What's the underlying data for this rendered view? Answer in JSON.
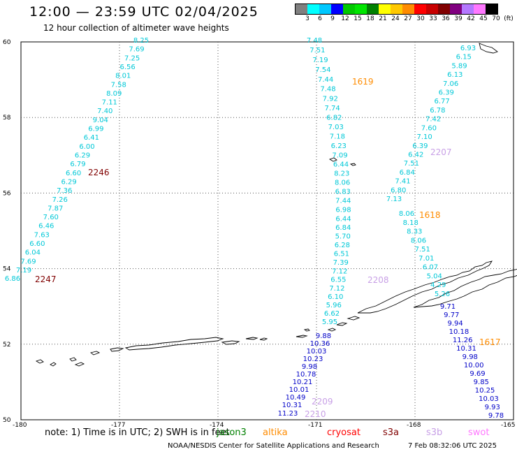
{
  "title": "12:00 — 23:59 UTC 02/04/2025",
  "subtitle": "12 hour collection of altimeter wave heights",
  "scale": {
    "colors": [
      "#808080",
      "#00ffff",
      "#00c8ff",
      "#0000ff",
      "#00c800",
      "#00e600",
      "#008000",
      "#ffff00",
      "#ffc800",
      "#ff8c00",
      "#ff0000",
      "#c80000",
      "#800000",
      "#800080",
      "#b478ff",
      "#ff78ff",
      "#000000"
    ],
    "labels": [
      "3",
      "6",
      "9",
      "12",
      "15",
      "18",
      "21",
      "24",
      "27",
      "30",
      "33",
      "36",
      "39",
      "42",
      "45",
      "70"
    ],
    "unit": "(ft)"
  },
  "axes": {
    "lat_ticks": [
      "60",
      "58",
      "56",
      "54",
      "52",
      "50"
    ],
    "lon_ticks": [
      "-180",
      "-177",
      "-174",
      "-171",
      "-168",
      "-165"
    ]
  },
  "tracks": [
    {
      "id": "2246",
      "color": "#00c8d7",
      "label_color": "#800000",
      "label": "2246",
      "values": [
        "8.25",
        "7.69",
        "7.25",
        "6.56",
        "8.01",
        "7.58",
        "8.09",
        "7.11",
        "7.40",
        "9.04",
        "6.99",
        "6.41",
        "6.00",
        "6.29",
        "6.79",
        "6.60",
        "6.29",
        "7.36",
        "7.26",
        "7.87",
        "7.60",
        "6.46",
        "7.63",
        "6.60",
        "6.04",
        "7.69",
        "7.19"
      ]
    },
    {
      "id": "2247",
      "color": "#00c8d7",
      "label_color": "#800000",
      "label": "2247",
      "values": [
        "6.86"
      ]
    },
    {
      "id": "1619",
      "color": "#00c8d7",
      "label_color": "#ff8c00",
      "label": "1619",
      "values": [
        "7.48",
        "7.51",
        "7.19",
        "7.54",
        "7.44",
        "7.48",
        "7.92",
        "7.74",
        "6.82",
        "7.03",
        "7.18",
        "6.23",
        "7.09",
        "6.44",
        "8.23",
        "8.06",
        "6.83",
        "7.44",
        "6.98",
        "6.44",
        "6.84",
        "5.70",
        "6.28",
        "6.51",
        "7.39",
        "7.12",
        "6.55",
        "7.12",
        "6.10",
        "5.96",
        "6.62",
        "5.95"
      ]
    },
    {
      "id": "2208",
      "color": "#00c8d7",
      "label_color": "#c8a0e6",
      "label": "2208",
      "values": []
    },
    {
      "id": "2207",
      "color": "#00c8d7",
      "label_color": "#c8a0e6",
      "label": "2207",
      "values": [
        "6.93",
        "6.15",
        "5.89",
        "6.13",
        "7.06",
        "6.39",
        "6.77",
        "6.78",
        "7.42",
        "7.60",
        "7.10",
        "6.39",
        "6.42",
        "7.51",
        "6.84",
        "7.41",
        "6.80",
        "7.13"
      ]
    },
    {
      "id": "1618",
      "color": "#00c8d7",
      "label_color": "#ff8c00",
      "label": "1618",
      "values": [
        "8.06",
        "8.18",
        "8.33",
        "8.06",
        "7.51",
        "7.01",
        "6.07",
        "5.04",
        "4.29",
        "5.26"
      ]
    },
    {
      "id": "1617",
      "color": "#0000c8",
      "label_color": "#ff8c00",
      "label": "1617",
      "values": [
        "9.71",
        "9.77",
        "9.94",
        "10.18",
        "11.26",
        "10.31",
        "9.98",
        "10.00",
        "9.69",
        "9.85",
        "10.25",
        "10.03",
        "9.93",
        "9.78"
      ]
    },
    {
      "id": "2209",
      "color": "#0000c8",
      "label_color": "#c8a0e6",
      "label": "2209",
      "values": [
        "9.88",
        "10.36",
        "10.03",
        "10.23",
        "9.98",
        "10.78",
        "10.21",
        "10.01",
        "10.49",
        "10.31"
      ]
    },
    {
      "id": "2210",
      "color": "#0000c8",
      "label_color": "#c8a0e6",
      "label": "2210",
      "values": [
        "11.23"
      ]
    }
  ],
  "footer": {
    "note": "note:  1) Time is in UTC;  2) SWH is in feet",
    "legend": [
      {
        "name": "jason3",
        "color": "#008000"
      },
      {
        "name": "altika",
        "color": "#ff8c00"
      },
      {
        "name": "cryosat",
        "color": "#ff0000"
      },
      {
        "name": "s3a",
        "color": "#800000"
      },
      {
        "name": "s3b",
        "color": "#c8a0e6"
      },
      {
        "name": "swot",
        "color": "#ff78ff"
      }
    ],
    "credit": "NOAA/NESDIS Center for Satellite Applications and Research",
    "timestamp": "7 Feb 08:32:06 UTC 2025"
  }
}
